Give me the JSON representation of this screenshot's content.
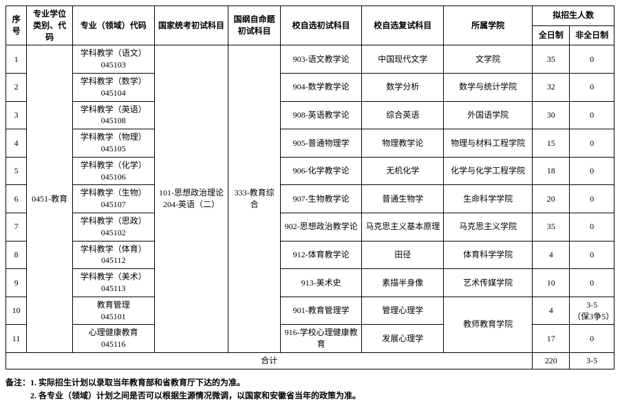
{
  "headers": {
    "seq": "序号",
    "category": "专业学位类别、代码",
    "major": "专业（领域）代码",
    "national_exam": "国家统考初试科目",
    "national_self": "国纲自命题初试科目",
    "school_self_init": "校自选初试科目",
    "school_self_retest": "校自选复试科目",
    "college": "所属学院",
    "enrollment": "拟招生人数",
    "fulltime": "全日制",
    "parttime": "非全日制"
  },
  "common": {
    "category_label": "0451-教育",
    "national_exam_label": "101-思想政治理论204-英语（二）",
    "national_self_label": "333-教育综合"
  },
  "rows": [
    {
      "seq": "1",
      "major_name": "学科教学（语文）",
      "major_code": "045103",
      "school_self_init": "903-语文教学论",
      "school_self_retest": "中国现代文学",
      "college": "文学院",
      "fulltime": "35",
      "parttime": "0"
    },
    {
      "seq": "2",
      "major_name": "学科教学（数学）",
      "major_code": "045104",
      "school_self_init": "904-数学教学论",
      "school_self_retest": "数学分析",
      "college": "数学与统计学院",
      "fulltime": "32",
      "parttime": "0"
    },
    {
      "seq": "3",
      "major_name": "学科教学（英语）",
      "major_code": "045108",
      "school_self_init": "908-英语教学论",
      "school_self_retest": "综合英语",
      "college": "外国语学院",
      "fulltime": "30",
      "parttime": "0"
    },
    {
      "seq": "4",
      "major_name": "学科教学（物理）",
      "major_code": "045105",
      "school_self_init": "905-普通物理学",
      "school_self_retest": "物理教学论",
      "college": "物理与材料工程学院",
      "fulltime": "15",
      "parttime": "0"
    },
    {
      "seq": "5",
      "major_name": "学科教学（化学）",
      "major_code": "045106",
      "school_self_init": "906-化学教学论",
      "school_self_retest": "无机化学",
      "college": "化学与化学工程学院",
      "fulltime": "18",
      "parttime": "0"
    },
    {
      "seq": "6",
      "major_name": "学科教学（生物）",
      "major_code": "045107",
      "school_self_init": "907-生物教学论",
      "school_self_retest": "普通生物学",
      "college": "生命科学学院",
      "fulltime": "20",
      "parttime": "0"
    },
    {
      "seq": "7",
      "major_name": "学科教学（思政）",
      "major_code": "045102",
      "school_self_init": "902-思想政治教学论",
      "school_self_retest": "马克思主义基本原理",
      "college": "马克思主义学院",
      "fulltime": "35",
      "parttime": "0"
    },
    {
      "seq": "8",
      "major_name": "学科教学（体育）",
      "major_code": "045112",
      "school_self_init": "912-体育教学论",
      "school_self_retest": "田径",
      "college": "体育科学学院",
      "fulltime": "4",
      "parttime": "0"
    },
    {
      "seq": "9",
      "major_name": "学科教学（美术）",
      "major_code": "045113",
      "school_self_init": "913-美术史",
      "school_self_retest": "素描半身像",
      "college": "艺术传媒学院",
      "fulltime": "10",
      "parttime": "0"
    },
    {
      "seq": "10",
      "major_name": "教育管理",
      "major_code": "045101",
      "school_self_init": "901-教育管理学",
      "school_self_retest": "管理心理学",
      "college": "教师教育学院",
      "fulltime": "4",
      "parttime": "3-5\n（保3争5）"
    },
    {
      "seq": "11",
      "major_name": "心理健康教育",
      "major_code": "045116",
      "school_self_init": "916-学校心理健康教育",
      "school_self_retest": "发展心理学",
      "college": "",
      "fulltime": "17",
      "parttime": "0"
    }
  ],
  "totals": {
    "label": "合计",
    "fulltime": "220",
    "parttime": "3-5"
  },
  "notes": {
    "line1": "备注：1. 实际招生计划以录取当年教育部和省教育厅下达的为准。",
    "line2": "　　　2. 各专业（领域）计划之间是否可以根据生源情况微调，以国家和安徽省当年的政策为准。"
  }
}
